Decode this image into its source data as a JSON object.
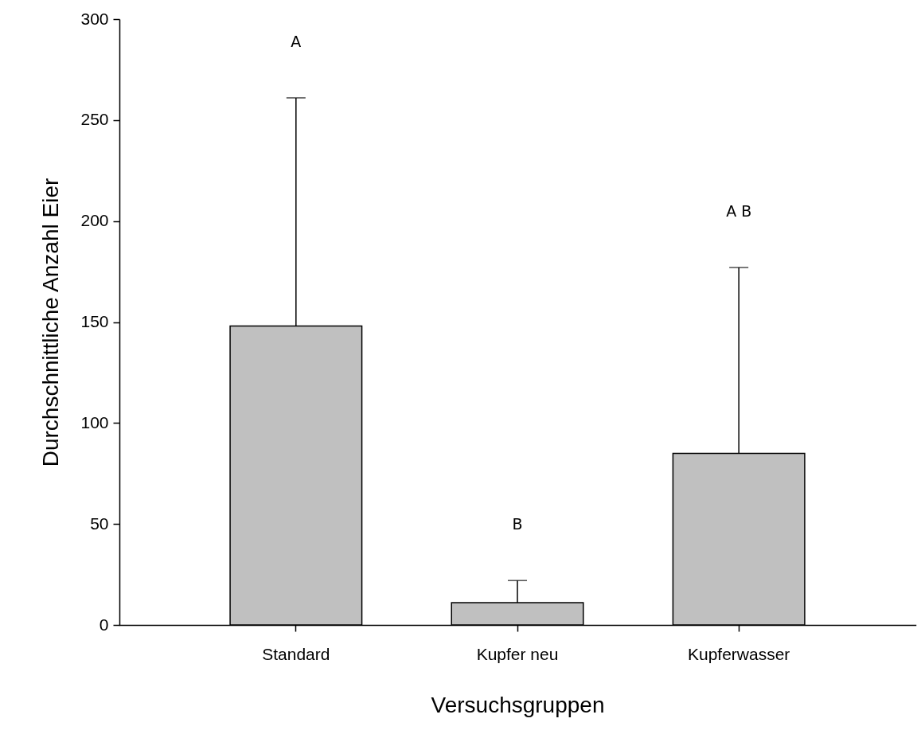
{
  "chart_data": {
    "type": "bar",
    "xlabel": "Versuchsgruppen",
    "ylabel": "Durchschnittliche Anzahl Eier",
    "categories": [
      "Standard",
      "Kupfer neu",
      "Kupferwasser"
    ],
    "values": [
      148,
      11,
      85
    ],
    "errors": [
      113,
      11,
      92
    ],
    "color": "#c0c0c0",
    "ylim": [
      0,
      300
    ],
    "yticks": [
      0,
      50,
      100,
      150,
      200,
      250,
      300
    ],
    "grid": false,
    "annotations": [
      "A",
      "B",
      "A B"
    ]
  }
}
